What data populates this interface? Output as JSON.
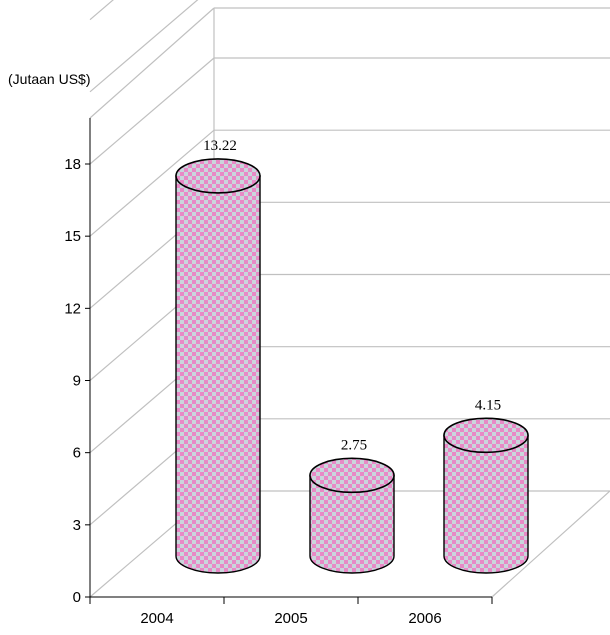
{
  "chart_data": {
    "type": "bar",
    "style": "3d-cylinder",
    "unit_label": "(Jutaan US$)",
    "categories": [
      "2004",
      "2005",
      "2006"
    ],
    "values": [
      13.22,
      2.75,
      4.15
    ],
    "data_labels": [
      "13.22",
      "2.75",
      "4.15"
    ],
    "yticks": [
      "0",
      "3",
      "6",
      "9",
      "12",
      "15",
      "18"
    ],
    "ylim": [
      0,
      18
    ],
    "grid": true,
    "legend": "none",
    "colors": {
      "bar_check_a": "#e889c6",
      "bar_check_b": "#c9d6dc",
      "bar_outline": "#000000",
      "grid": "#c0c0c0",
      "axis": "#000000"
    }
  }
}
